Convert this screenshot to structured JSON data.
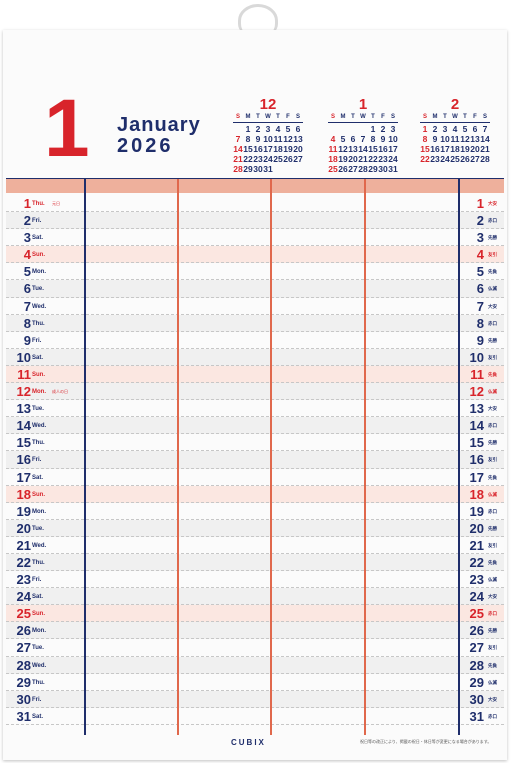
{
  "calendar": {
    "month_number": "1",
    "month_name": "January",
    "year": "2026",
    "brand": "CUBIX",
    "footer_note": "祝日等の改正により、掲載の祝日・休日等が変更になる場合があります。",
    "colors": {
      "navy": "#1f2e6b",
      "red": "#d8242b",
      "salmon": "#eeb09c"
    }
  },
  "mini_calendars": [
    {
      "title": "12",
      "weekdays": [
        "S",
        "M",
        "T",
        "W",
        "T",
        "F",
        "S"
      ],
      "cells": [
        "",
        "1",
        "2",
        "3",
        "4",
        "5",
        "6",
        "7",
        "8",
        "9",
        "10",
        "11",
        "12",
        "13",
        "14",
        "15",
        "16",
        "17",
        "18",
        "19",
        "20",
        "21",
        "22",
        "23",
        "24",
        "25",
        "26",
        "27",
        "28",
        "29",
        "30",
        "31",
        "",
        "",
        ""
      ]
    },
    {
      "title": "1",
      "weekdays": [
        "S",
        "M",
        "T",
        "W",
        "T",
        "F",
        "S"
      ],
      "cells": [
        "",
        "",
        "",
        "",
        "1",
        "2",
        "3",
        "4",
        "5",
        "6",
        "7",
        "8",
        "9",
        "10",
        "11",
        "12",
        "13",
        "14",
        "15",
        "16",
        "17",
        "18",
        "19",
        "20",
        "21",
        "22",
        "23",
        "24",
        "25",
        "26",
        "27",
        "28",
        "29",
        "30",
        "31"
      ]
    },
    {
      "title": "2",
      "weekdays": [
        "S",
        "M",
        "T",
        "W",
        "T",
        "F",
        "S"
      ],
      "cells": [
        "1",
        "2",
        "3",
        "4",
        "5",
        "6",
        "7",
        "8",
        "9",
        "10",
        "11",
        "12",
        "13",
        "14",
        "15",
        "16",
        "17",
        "18",
        "19",
        "20",
        "21",
        "22",
        "23",
        "24",
        "25",
        "26",
        "27",
        "28"
      ]
    }
  ],
  "days": [
    {
      "n": "1",
      "w": "Thu.",
      "note": "元日",
      "k": "大安",
      "type": "red"
    },
    {
      "n": "2",
      "w": "Fri.",
      "note": "",
      "k": "赤口",
      "type": ""
    },
    {
      "n": "3",
      "w": "Sat.",
      "note": "",
      "k": "先勝",
      "type": ""
    },
    {
      "n": "4",
      "w": "Sun.",
      "note": "",
      "k": "友引",
      "type": "sun"
    },
    {
      "n": "5",
      "w": "Mon.",
      "note": "",
      "k": "先負",
      "type": ""
    },
    {
      "n": "6",
      "w": "Tue.",
      "note": "",
      "k": "仏滅",
      "type": ""
    },
    {
      "n": "7",
      "w": "Wed.",
      "note": "",
      "k": "大安",
      "type": ""
    },
    {
      "n": "8",
      "w": "Thu.",
      "note": "",
      "k": "赤口",
      "type": ""
    },
    {
      "n": "9",
      "w": "Fri.",
      "note": "",
      "k": "先勝",
      "type": ""
    },
    {
      "n": "10",
      "w": "Sat.",
      "note": "",
      "k": "友引",
      "type": ""
    },
    {
      "n": "11",
      "w": "Sun.",
      "note": "",
      "k": "先負",
      "type": "sun"
    },
    {
      "n": "12",
      "w": "Mon.",
      "note": "成人の日",
      "k": "仏滅",
      "type": "red"
    },
    {
      "n": "13",
      "w": "Tue.",
      "note": "",
      "k": "大安",
      "type": ""
    },
    {
      "n": "14",
      "w": "Wed.",
      "note": "",
      "k": "赤口",
      "type": ""
    },
    {
      "n": "15",
      "w": "Thu.",
      "note": "",
      "k": "先勝",
      "type": ""
    },
    {
      "n": "16",
      "w": "Fri.",
      "note": "",
      "k": "友引",
      "type": ""
    },
    {
      "n": "17",
      "w": "Sat.",
      "note": "",
      "k": "先負",
      "type": ""
    },
    {
      "n": "18",
      "w": "Sun.",
      "note": "",
      "k": "仏滅",
      "type": "sun"
    },
    {
      "n": "19",
      "w": "Mon.",
      "note": "",
      "k": "赤口",
      "type": ""
    },
    {
      "n": "20",
      "w": "Tue.",
      "note": "",
      "k": "先勝",
      "type": ""
    },
    {
      "n": "21",
      "w": "Wed.",
      "note": "",
      "k": "友引",
      "type": ""
    },
    {
      "n": "22",
      "w": "Thu.",
      "note": "",
      "k": "先負",
      "type": ""
    },
    {
      "n": "23",
      "w": "Fri.",
      "note": "",
      "k": "仏滅",
      "type": ""
    },
    {
      "n": "24",
      "w": "Sat.",
      "note": "",
      "k": "大安",
      "type": ""
    },
    {
      "n": "25",
      "w": "Sun.",
      "note": "",
      "k": "赤口",
      "type": "sun"
    },
    {
      "n": "26",
      "w": "Mon.",
      "note": "",
      "k": "先勝",
      "type": ""
    },
    {
      "n": "27",
      "w": "Tue.",
      "note": "",
      "k": "友引",
      "type": ""
    },
    {
      "n": "28",
      "w": "Wed.",
      "note": "",
      "k": "先負",
      "type": ""
    },
    {
      "n": "29",
      "w": "Thu.",
      "note": "",
      "k": "仏滅",
      "type": ""
    },
    {
      "n": "30",
      "w": "Fri.",
      "note": "",
      "k": "大安",
      "type": ""
    },
    {
      "n": "31",
      "w": "Sat.",
      "note": "",
      "k": "赤口",
      "type": ""
    }
  ]
}
